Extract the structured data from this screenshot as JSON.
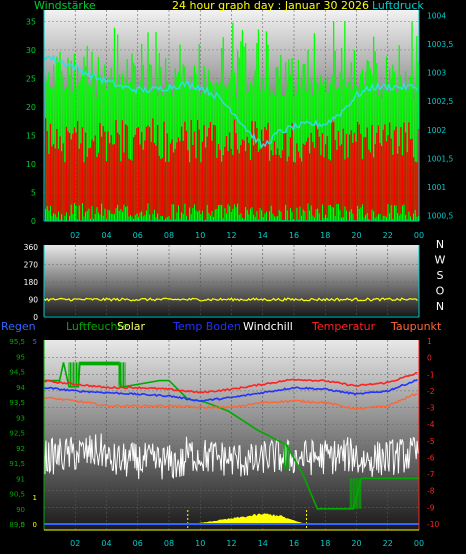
{
  "top": {
    "title": "24 hour graph day : Januar 30 2026",
    "left_label": "Windstärke",
    "right_label": "Luftdruck",
    "left_ticks": [
      "0",
      "5",
      "10",
      "15",
      "20",
      "25",
      "30",
      "35"
    ],
    "right_ticks": [
      "1000,5",
      "1001",
      "1001,5",
      "1002",
      "1002,5",
      "1003",
      "1003,5",
      "1004"
    ],
    "x_ticks": [
      "02",
      "04",
      "06",
      "08",
      "10",
      "12",
      "14",
      "16",
      "18",
      "20",
      "22",
      "00"
    ]
  },
  "mid": {
    "y_ticks": [
      "0",
      "90",
      "180",
      "270",
      "360"
    ],
    "dir_labels": [
      "N",
      "W",
      "S",
      "O",
      "N"
    ],
    "x_ticks": [
      "02",
      "04",
      "06",
      "08",
      "10",
      "12",
      "14",
      "16",
      "18",
      "20",
      "22",
      "00"
    ]
  },
  "bottom": {
    "legend": [
      "Regen",
      "Luftfeuchte",
      "Solar",
      "Temp Boden",
      "Windchill",
      "Temperatur",
      "Taupunkt"
    ],
    "left_ticks": [
      "0",
      "89,5",
      "90",
      "90,5",
      "91",
      "91,5",
      "92",
      "92,5",
      "93",
      "93,5",
      "94",
      "94,5",
      "95",
      "95,5"
    ],
    "left_small": [
      "5",
      "1",
      "0"
    ],
    "right_ticks": [
      "1",
      "0",
      "-1",
      "-2",
      "-3",
      "-4",
      "-5",
      "-6",
      "-7",
      "-8",
      "-9",
      "-10"
    ],
    "x_ticks": [
      "02",
      "04",
      "06",
      "08",
      "10",
      "12",
      "14",
      "16",
      "18",
      "20",
      "22",
      "00"
    ]
  },
  "colors": {
    "wind_gust": "#00ff00",
    "wind_avg": "#ff0000",
    "pressure": "#33dddd",
    "direction": "#ffff00",
    "regen": "#3366ff",
    "luftfeuchte": "#00aa00",
    "solar": "#ffff00",
    "temp_boden": "#2233ff",
    "windchill": "#ffffff",
    "temperatur": "#ff2222",
    "taupunkt": "#ff6633",
    "axis_cyan": "#00cccc",
    "axis_yellow": "#ffff00",
    "axis_red": "#ff2222"
  },
  "chart_data": [
    {
      "type": "bar",
      "title": "24 hour graph day : Januar 30 2026",
      "ylabel": "Windstärke",
      "y2label": "Luftdruck",
      "ylim": [
        0,
        37
      ],
      "y2lim": [
        1000.4,
        1004.1
      ],
      "series": [
        {
          "name": "Windstärke",
          "description": "wind gusts, range approx",
          "min": 19,
          "max": 35,
          "typical": 25
        },
        {
          "name": "Windstärke",
          "description": "average wind, range approx",
          "min": 7,
          "max": 20,
          "typical": 14
        },
        {
          "name": "Luftdruck",
          "x": [
            0,
            1,
            2,
            3,
            4,
            5,
            6,
            7,
            8,
            9,
            10,
            11,
            12,
            13,
            14,
            15,
            16,
            17,
            18,
            19,
            20,
            21,
            22,
            23,
            24
          ],
          "values": [
            1003.3,
            1003.2,
            1003.1,
            1002.95,
            1002.85,
            1002.75,
            1002.7,
            1002.7,
            1002.75,
            1002.8,
            1002.75,
            1002.6,
            1002.35,
            1002.0,
            1001.7,
            1001.95,
            1002.05,
            1002.1,
            1002.1,
            1002.3,
            1002.6,
            1002.75,
            1002.75,
            1002.75,
            1002.75
          ]
        }
      ]
    },
    {
      "type": "line",
      "series": [
        {
          "name": "direction",
          "typical": 90
        }
      ],
      "ylim": [
        0,
        360
      ]
    },
    {
      "type": "line",
      "legend": [
        "Regen",
        "Luftfeuchte",
        "Solar",
        "Temp Boden",
        "Windchill",
        "Temperatur",
        "Taupunkt"
      ],
      "ylim": [
        89.5,
        95.5
      ],
      "y2lim": [
        -10,
        1
      ],
      "series": [
        {
          "name": "Temperatur",
          "x": [
            0,
            2,
            4,
            6,
            8,
            10,
            12,
            14,
            16,
            18,
            20,
            22,
            24
          ],
          "values": [
            -1.4,
            -1.6,
            -1.8,
            -1.8,
            -1.9,
            -2.1,
            -1.9,
            -1.6,
            -1.3,
            -1.4,
            -1.7,
            -1.5,
            -0.9
          ]
        },
        {
          "name": "Temp Boden",
          "x": [
            0,
            2,
            4,
            6,
            8,
            10,
            12,
            14,
            16,
            18,
            20,
            22,
            24
          ],
          "values": [
            -1.8,
            -2.0,
            -2.1,
            -2.2,
            -2.3,
            -2.6,
            -2.4,
            -2.1,
            -1.8,
            -1.9,
            -2.2,
            -2.0,
            -1.3
          ]
        },
        {
          "name": "Taupunkt",
          "x": [
            0,
            2,
            4,
            6,
            8,
            10,
            12,
            14,
            16,
            18,
            20,
            22,
            24
          ],
          "values": [
            -2.4,
            -2.6,
            -2.9,
            -2.9,
            -2.9,
            -3.0,
            -3.0,
            -2.7,
            -2.6,
            -2.7,
            -3.1,
            -2.9,
            -2.1
          ]
        },
        {
          "name": "Windchill",
          "range": [
            -7.3,
            -4.6
          ],
          "typical": -6.0
        },
        {
          "name": "Luftfeuchte",
          "x": [
            0,
            1,
            1.25,
            1.6,
            2.2,
            2.3,
            4.8,
            4.9,
            5.1,
            7.4,
            8,
            9.2,
            10.3,
            11.8,
            13.6,
            15.5,
            16.5,
            17.5,
            18.5,
            19.8,
            20.3,
            24
          ],
          "values": [
            94.2,
            94.2,
            94.8,
            94.0,
            94.0,
            94.8,
            94.8,
            94.0,
            94.0,
            94.2,
            94.2,
            93.6,
            93.5,
            93.2,
            92.6,
            92.1,
            91.2,
            90.0,
            90.0,
            90.0,
            91.0,
            91.0
          ]
        },
        {
          "name": "Solar",
          "x": [
            9.2,
            10,
            11,
            12,
            13,
            14,
            15,
            16,
            16.8
          ],
          "values": [
            0.0,
            0.1,
            0.3,
            0.5,
            0.7,
            0.9,
            0.8,
            0.3,
            0.0
          ]
        }
      ]
    }
  ]
}
